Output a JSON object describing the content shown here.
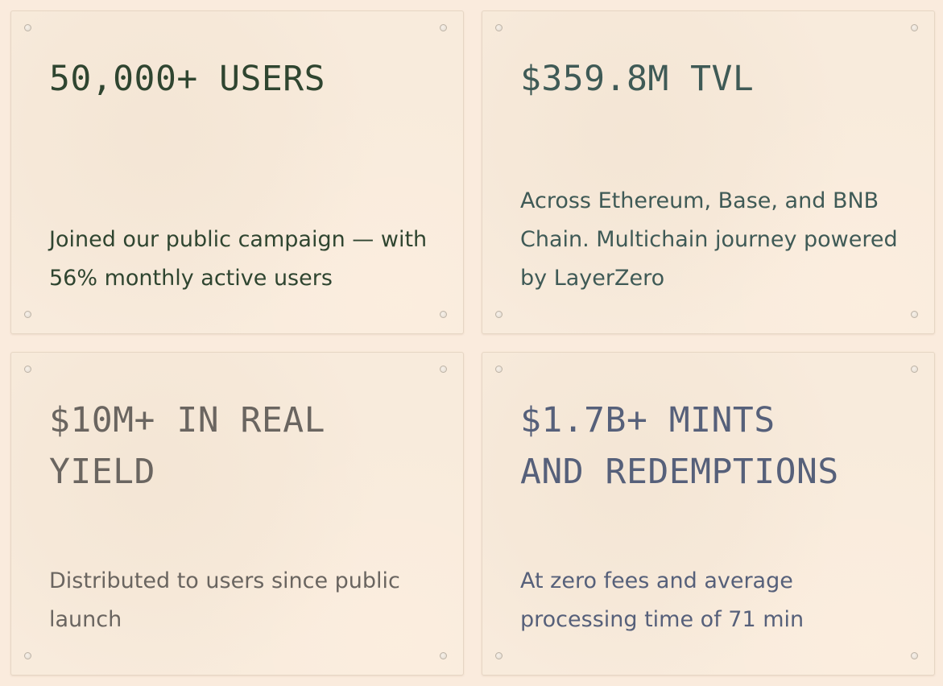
{
  "stats": [
    {
      "headline_lines": [
        "50,000+ USERS"
      ],
      "description": "Joined our public campaign — with 56% monthly active users",
      "color": "#2f4530"
    },
    {
      "headline_lines": [
        "$359.8M TVL"
      ],
      "description": "Across Ethereum, Base, and BNB Chain. Multichain journey powered by LayerZero",
      "color": "#3f5a56"
    },
    {
      "headline_lines": [
        "$10M+ IN REAL",
        "YIELD"
      ],
      "description": "Distributed to users since public launch",
      "color": "#6a6560"
    },
    {
      "headline_lines": [
        "$1.7B+ MINTS",
        "AND REDEMPTIONS"
      ],
      "description": "At zero fees and average processing time of 71 min",
      "color": "#56607a"
    }
  ]
}
